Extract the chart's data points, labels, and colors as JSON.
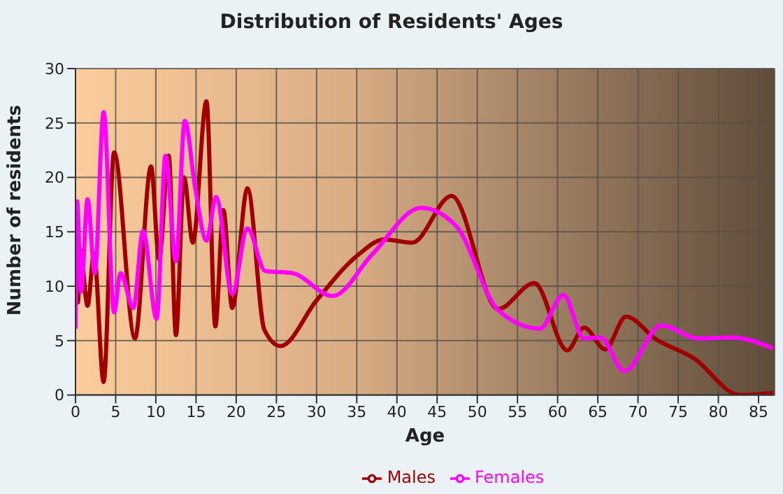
{
  "chart_data": {
    "type": "line",
    "title": "Distribution of Residents' Ages",
    "xlabel": "Age",
    "ylabel": "Number of residents",
    "xlim": [
      0,
      87
    ],
    "xticks": [
      0,
      5,
      10,
      15,
      20,
      25,
      30,
      35,
      40,
      45,
      50,
      55,
      60,
      65,
      70,
      75,
      80,
      85
    ],
    "ylim": [
      0,
      30
    ],
    "yticks": [
      0,
      5,
      10,
      15,
      20,
      25,
      30
    ],
    "grid": true,
    "legend": "bottom",
    "marker": "none",
    "line_style": "solid",
    "series": [
      {
        "name": "Males",
        "color": "#a00000",
        "x": [
          0,
          0.3,
          0.6,
          1.5,
          2.3,
          3.5,
          4.8,
          7.4,
          9.4,
          10.4,
          11.6,
          12.5,
          13.5,
          14.6,
          16.3,
          17.4,
          18.4,
          19.5,
          21.4,
          23.5,
          25.5,
          30,
          35.2,
          38.4,
          41.9,
          46.8,
          52.6,
          57.1,
          61.2,
          63.3,
          65.9,
          68.5,
          72.3,
          76.9,
          82.7,
          86.8
        ],
        "values": [
          14.2,
          8.5,
          13.3,
          8.2,
          13,
          1.2,
          22.3,
          5.2,
          21,
          12.5,
          22,
          5.5,
          20,
          14,
          27,
          6.3,
          17,
          8,
          19,
          6,
          4.5,
          8.7,
          12.9,
          14.3,
          14,
          18.3,
          7.9,
          10.3,
          4.1,
          6.2,
          4.2,
          7.2,
          5.1,
          3.4,
          0,
          0.2
        ]
      },
      {
        "name": "Females",
        "color": "#ff00ff",
        "x": [
          0,
          0.2,
          0.7,
          1.5,
          2.4,
          3.5,
          4.8,
          5.6,
          7.2,
          8.4,
          10.1,
          11.2,
          12.5,
          13.6,
          14.9,
          16.3,
          17.5,
          19.5,
          21.4,
          23.6,
          27,
          32,
          36.9,
          43,
          47.4,
          52.6,
          57.8,
          60.7,
          63.3,
          65.3,
          68.3,
          72.9,
          77.5,
          81.6,
          86.8
        ],
        "values": [
          6.1,
          17.8,
          9.5,
          18,
          11.2,
          26,
          7.6,
          11.2,
          8,
          15.1,
          7,
          22,
          12.3,
          25.2,
          19,
          14.2,
          18.2,
          9.3,
          15.3,
          11.4,
          11.2,
          9.1,
          12.9,
          17.2,
          15.5,
          7.8,
          6.1,
          9.2,
          5.2,
          5.3,
          2.2,
          6.4,
          5.2,
          5.3,
          4.3
        ]
      }
    ]
  }
}
